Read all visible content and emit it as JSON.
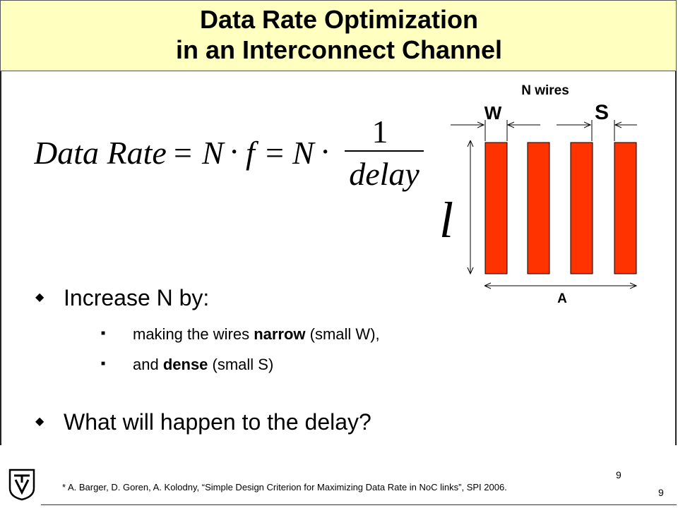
{
  "slide": {
    "title_line1": "Data Rate Optimization",
    "title_line2": "in an Interconnect Channel"
  },
  "formula": {
    "lhs": "Data Rate",
    "eq": "=",
    "n": "N",
    "dot": "·",
    "f": "f",
    "numerator": "1",
    "denominator": "delay"
  },
  "diagram": {
    "n_wires_label": "N wires",
    "w_label": "W",
    "s_label": "S",
    "l_label": "l",
    "a_label": "A",
    "wire_color": "#FF3300",
    "wire_count": 4
  },
  "bullets": {
    "b1": "Increase N by:",
    "sub1_pre": "making the wires ",
    "sub1_bold": "narrow",
    "sub1_post": " (small W),",
    "sub2_pre": "and ",
    "sub2_bold": "dense",
    "sub2_post": " (small S)",
    "b2": "What will happen to the delay?"
  },
  "footer": {
    "citation": "*   A. Barger, D. Goren, A. Kolodny, “Simple Design Criterion for Maximizing Data Rate in NoC links”, SPI 2006.",
    "page_number_top": "9",
    "page_number_bottom": "9"
  },
  "icons": {
    "bullet_main": "diamond-bullet-icon",
    "bullet_sub": "square-bullet-icon",
    "logo": "technion-logo-icon"
  }
}
